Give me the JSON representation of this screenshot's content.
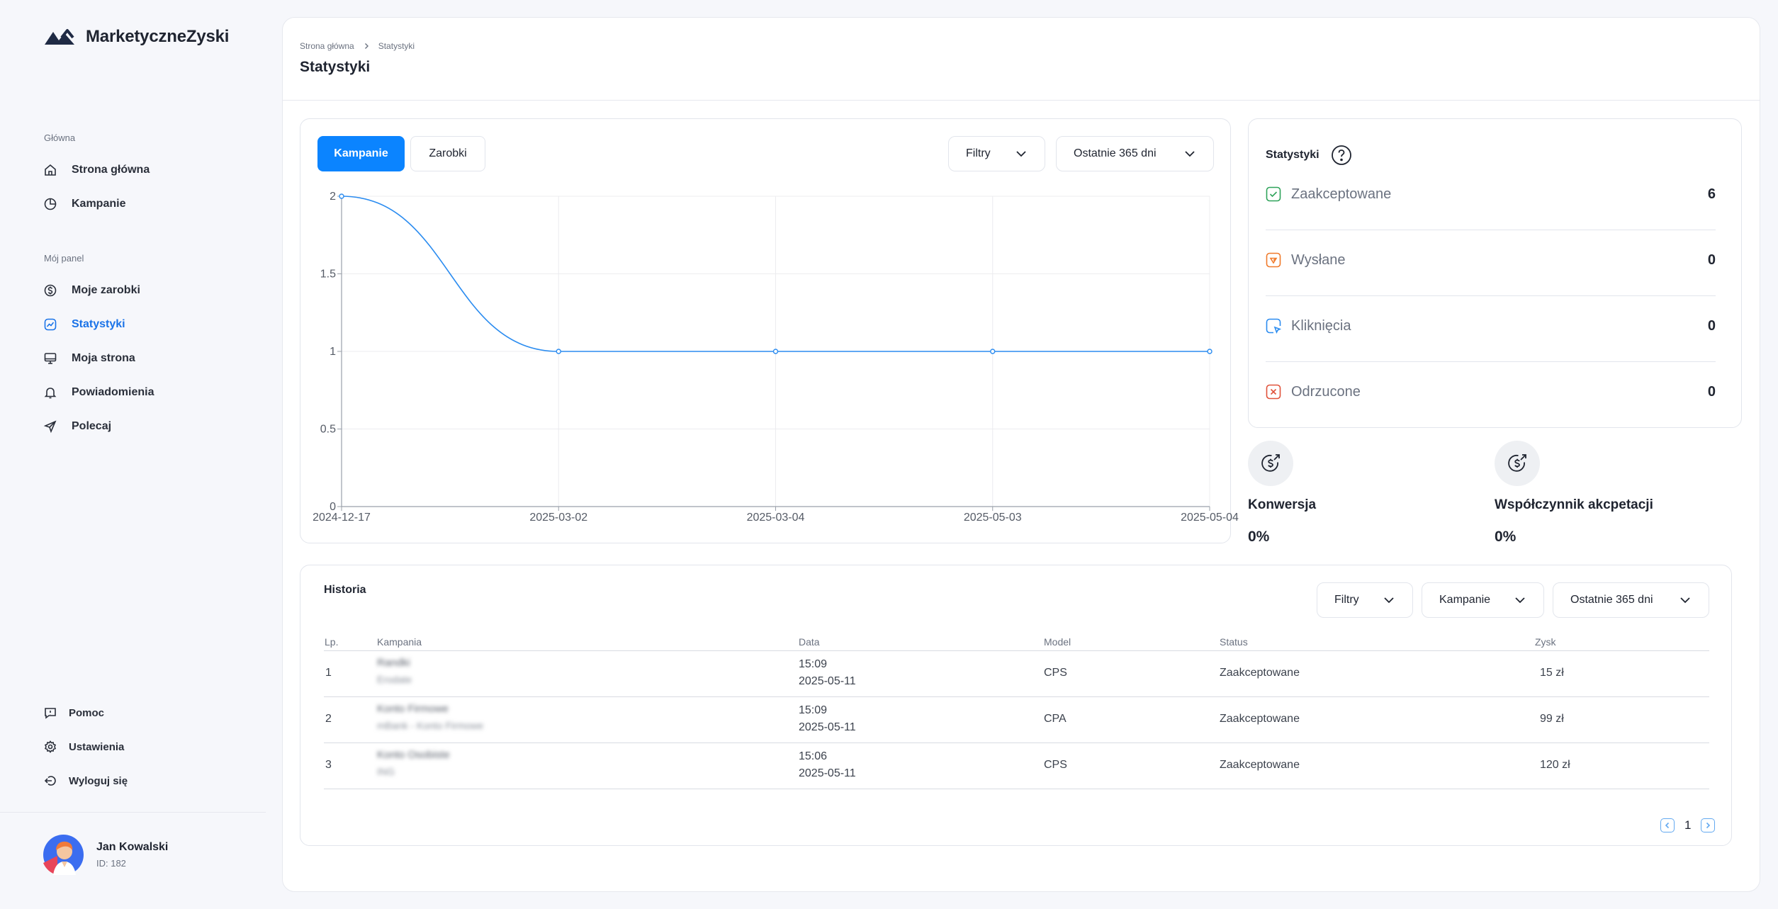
{
  "app": {
    "brand": "MarketyczneZyski"
  },
  "sidebar": {
    "sections": [
      {
        "title": "Główna",
        "items": [
          {
            "label": "Strona główna",
            "icon": "home-icon"
          },
          {
            "label": "Kampanie",
            "icon": "pie-chart-icon"
          }
        ]
      },
      {
        "title": "Mój panel",
        "items": [
          {
            "label": "Moje zarobki",
            "icon": "dollar-icon"
          },
          {
            "label": "Statystyki",
            "icon": "trend-icon",
            "active": true
          },
          {
            "label": "Moja strona",
            "icon": "monitor-icon"
          },
          {
            "label": "Powiadomienia",
            "icon": "bell-icon"
          },
          {
            "label": "Polecaj",
            "icon": "send-icon"
          }
        ]
      }
    ],
    "bottom": [
      {
        "label": "Pomoc",
        "icon": "help-icon"
      },
      {
        "label": "Ustawienia",
        "icon": "gear-icon"
      },
      {
        "label": "Wyloguj się",
        "icon": "logout-icon"
      }
    ],
    "user": {
      "name": "Jan Kowalski",
      "id": "ID: 182"
    }
  },
  "header": {
    "breadcrumb": [
      "Strona główna",
      "Statystyki"
    ],
    "title": "Statystyki"
  },
  "chart_panel": {
    "tabs": [
      {
        "label": "Kampanie",
        "active": true
      },
      {
        "label": "Zarobki",
        "active": false
      }
    ],
    "filters_label": "Filtry",
    "range_label": "Ostatnie 365 dni"
  },
  "chart_data": {
    "type": "line",
    "x": [
      "2024-12-17",
      "2025-03-02",
      "2025-03-04",
      "2025-05-03",
      "2025-05-04"
    ],
    "series": [
      {
        "values": [
          2,
          1,
          1,
          1,
          1
        ],
        "color": "#2b8cf0"
      }
    ],
    "ylim": [
      0,
      2
    ],
    "yticks": [
      "0",
      "0.5",
      "1",
      "1.5",
      "2"
    ],
    "grid": true,
    "title": "",
    "xlabel": "",
    "ylabel": ""
  },
  "stats": {
    "title": "Statystyki",
    "items": [
      {
        "label": "Zaakceptowane",
        "value": "6",
        "icon": "check-icon",
        "color": "#2fa35a"
      },
      {
        "label": "Wysłane",
        "value": "0",
        "icon": "sent-icon",
        "color": "#f07a2b"
      },
      {
        "label": "Kliknięcia",
        "value": "0",
        "icon": "click-icon",
        "color": "#2b8cf0"
      },
      {
        "label": "Odrzucone",
        "value": "0",
        "icon": "x-icon",
        "color": "#e0523a"
      }
    ]
  },
  "metrics": [
    {
      "label": "Konwersja",
      "value": "0%",
      "icon": "dollar-up-icon"
    },
    {
      "label": "Współczynnik akcpetacji",
      "value": "0%",
      "icon": "dollar-up-icon"
    }
  ],
  "history": {
    "title": "Historia",
    "filters": [
      "Filtry",
      "Kampanie",
      "Ostatnie 365 dni"
    ],
    "columns": [
      "Lp.",
      "Kampania",
      "Data",
      "Model",
      "Status",
      "Zysk"
    ],
    "rows": [
      {
        "lp": "1",
        "campaign": "Randki",
        "campaign_sub": "Erodate",
        "time": "15:09",
        "date": "2025-05-11",
        "model": "CPS",
        "status": "Zaakceptowane",
        "profit": "15 zł"
      },
      {
        "lp": "2",
        "campaign": "Konto Firmowe",
        "campaign_sub": "mBank - Konto Firmowe",
        "time": "15:09",
        "date": "2025-05-11",
        "model": "CPA",
        "status": "Zaakceptowane",
        "profit": "99 zł"
      },
      {
        "lp": "3",
        "campaign": "Konto Osobiste",
        "campaign_sub": "ING",
        "time": "15:06",
        "date": "2025-05-11",
        "model": "CPS",
        "status": "Zaakceptowane",
        "profit": "120 zł"
      }
    ],
    "page": "1"
  }
}
